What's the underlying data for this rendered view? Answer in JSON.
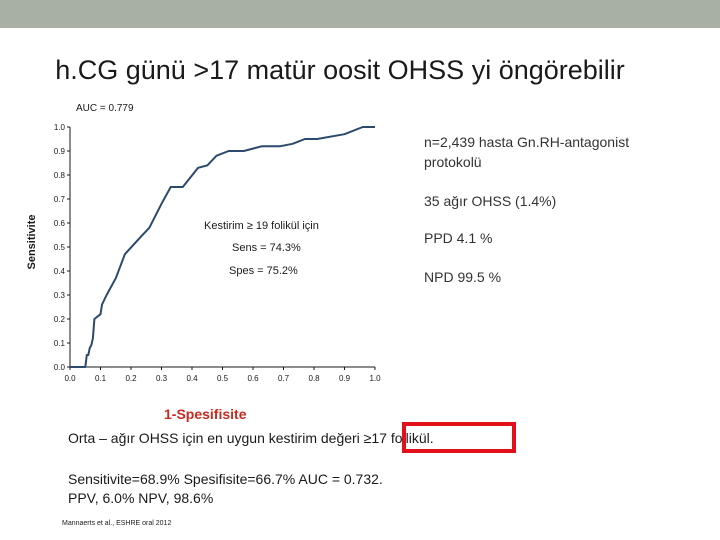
{
  "slide": {
    "title": "h.CG günü >17 matür oosit OHSS yi öngörebilir",
    "auc_label": "AUC = 0.779",
    "y_axis_label": "Sensitivite",
    "notes": {
      "n_line": "n=2,439 hasta Gn.RH-antagonist protokolü",
      "ohss_count": "35 ağır OHSS (1.4%)",
      "ppd": "PPD 4.1 %",
      "npd": "NPD 99.5 %"
    },
    "plot_annotations": {
      "cutoff": "Kestirim ≥ 19 folikül için",
      "sens": "Sens = 74.3%",
      "spec": "Spes = 75.2%"
    },
    "x_axis_label": "1-Spesifisite",
    "cutoff_line": "Orta – ağır OHSS için en uygun kestirim değeri ≥17 follikül.",
    "results_line1": "Sensitivite=68.9%   Spesifisite=66.7% AUC = 0.732.",
    "results_line2": "PPV, 6.0%  NPV, 98.6%",
    "reference": "Mannaerts et al., ESHRE oral 2012"
  },
  "chart_data": {
    "type": "line",
    "title": "",
    "xlabel": "1-Spesifisite",
    "ylabel": "Sensitivite",
    "xlim": [
      0,
      1
    ],
    "ylim": [
      0,
      1
    ],
    "x_ticks": [
      "0.0",
      "0.1",
      "0.2",
      "0.3",
      "0.4",
      "0.5",
      "0.6",
      "0.7",
      "0.8",
      "0.9",
      "1.0"
    ],
    "y_ticks": [
      "0.0",
      "0.1",
      "0.2",
      "0.3",
      "0.4",
      "0.5",
      "0.6",
      "0.7",
      "0.8",
      "0.9",
      "1.0"
    ],
    "grid": false,
    "series": [
      {
        "color": "#2c4a6b",
        "x": [
          0.0,
          0.05,
          0.055,
          0.06,
          0.065,
          0.07,
          0.075,
          0.08,
          0.09,
          0.1,
          0.105,
          0.12,
          0.15,
          0.18,
          0.23,
          0.26,
          0.3,
          0.33,
          0.37,
          0.42,
          0.45,
          0.48,
          0.52,
          0.57,
          0.63,
          0.69,
          0.73,
          0.77,
          0.81,
          0.9,
          0.96,
          0.98,
          1.0
        ],
        "y": [
          0.0,
          0.0,
          0.05,
          0.05,
          0.08,
          0.09,
          0.12,
          0.2,
          0.21,
          0.22,
          0.26,
          0.3,
          0.37,
          0.47,
          0.54,
          0.58,
          0.68,
          0.75,
          0.75,
          0.83,
          0.84,
          0.88,
          0.9,
          0.9,
          0.92,
          0.92,
          0.93,
          0.95,
          0.95,
          0.97,
          1.0,
          1.0,
          1.0
        ]
      }
    ]
  }
}
